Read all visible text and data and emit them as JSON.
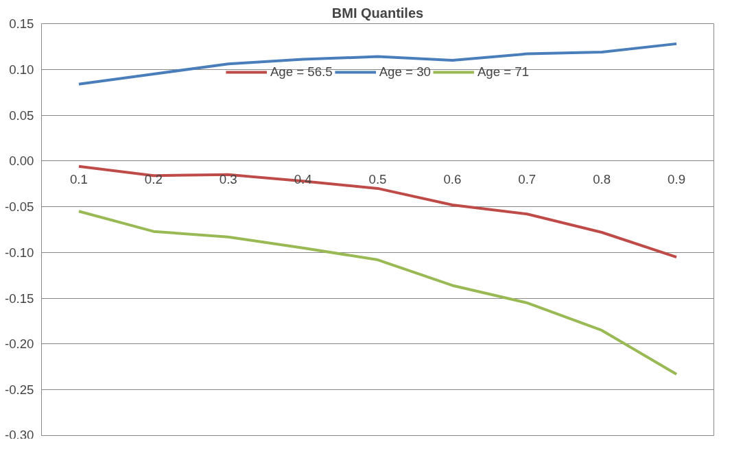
{
  "chart_data": {
    "type": "line",
    "title": "BMI Quantiles",
    "categories": [
      "0.1",
      "0.2",
      "0.3",
      "0.4",
      "0.5",
      "0.6",
      "0.7",
      "0.8",
      "0.9"
    ],
    "series": [
      {
        "name": "Age = 56.5",
        "color": "#be4b48",
        "values": [
          -0.006,
          -0.016,
          -0.015,
          -0.022,
          -0.03,
          -0.048,
          -0.058,
          -0.078,
          -0.105
        ]
      },
      {
        "name": "Age = 30",
        "color": "#4a7ebb",
        "values": [
          0.084,
          0.095,
          0.106,
          0.111,
          0.114,
          0.11,
          0.117,
          0.119,
          0.128
        ]
      },
      {
        "name": "Age = 71",
        "color": "#98b954",
        "values": [
          -0.055,
          -0.077,
          -0.083,
          -0.095,
          -0.108,
          -0.136,
          -0.155,
          -0.185,
          -0.233
        ]
      }
    ],
    "ylim": [
      -0.3,
      0.15
    ],
    "yticks": [
      {
        "value": -0.3,
        "label": "-0.30"
      },
      {
        "value": -0.25,
        "label": "-0.25"
      },
      {
        "value": -0.2,
        "label": "-0.20"
      },
      {
        "value": -0.15,
        "label": "-0.15"
      },
      {
        "value": -0.1,
        "label": "-0.10"
      },
      {
        "value": -0.05,
        "label": "-0.05"
      },
      {
        "value": 0,
        "label": "0.00"
      },
      {
        "value": 0.05,
        "label": "0.05"
      },
      {
        "value": 0.1,
        "label": "0.10"
      },
      {
        "value": 0.15,
        "label": "0.15"
      }
    ],
    "grid": "y",
    "legend": "top",
    "marker": "none",
    "line_style": "solid"
  }
}
